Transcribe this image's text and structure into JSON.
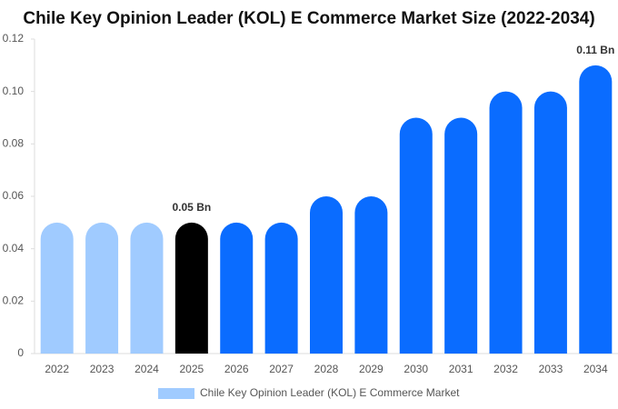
{
  "chart_data": {
    "type": "bar",
    "title": "Chile Key Opinion Leader (KOL) E Commerce Market Size (2022-2034)",
    "categories": [
      "2022",
      "2023",
      "2024",
      "2025",
      "2026",
      "2027",
      "2028",
      "2029",
      "2030",
      "2031",
      "2032",
      "2033",
      "2034"
    ],
    "series": [
      {
        "name": "Chile Key Opinion Leader (KOL) E Commerce Market",
        "color": "#a0cbff",
        "values": [
          0.05,
          0.05,
          0.05,
          0.05,
          0.05,
          0.05,
          0.06,
          0.06,
          0.09,
          0.09,
          0.1,
          0.1,
          0.11
        ],
        "value_labels": [
          null,
          null,
          null,
          "0.05 Bn",
          null,
          null,
          null,
          null,
          null,
          null,
          null,
          null,
          "0.11 Bn"
        ],
        "colors": [
          "#a0cbff",
          "#a0cbff",
          "#a0cbff",
          "#000000",
          "#0a6cff",
          "#0a6cff",
          "#0a6cff",
          "#0a6cff",
          "#0a6cff",
          "#0a6cff",
          "#0a6cff",
          "#0a6cff",
          "#0a6cff"
        ]
      }
    ],
    "ylim": [
      0,
      0.12
    ],
    "yticks": [
      0,
      0.02,
      0.04,
      0.06,
      0.08,
      {
        "value": 0.1,
        "label": "0.10"
      },
      0.12
    ],
    "grid": false
  }
}
